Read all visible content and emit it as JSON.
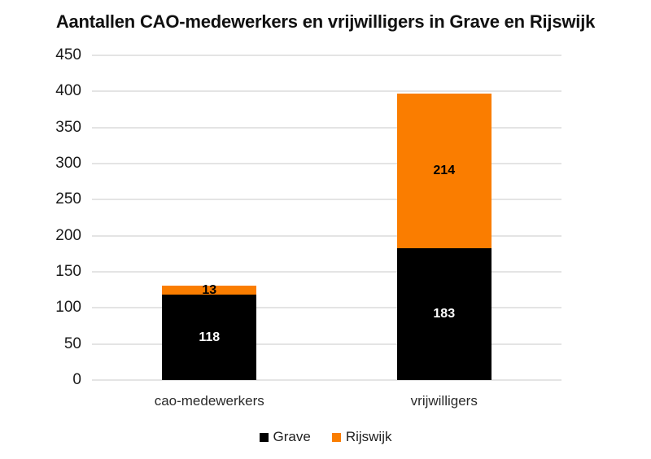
{
  "chart_data": {
    "type": "bar",
    "stacked": true,
    "title": "Aantallen CAO-medewerkers en vrijwilligers in Grave en Rijswijk",
    "categories": [
      "cao-medewerkers",
      "vrijwilligers"
    ],
    "series": [
      {
        "name": "Grave",
        "color": "#000000",
        "label_color": "#ffffff",
        "values": [
          118,
          183
        ]
      },
      {
        "name": "Rijswijk",
        "color": "#fa7d00",
        "label_color": "#000000",
        "values": [
          13,
          214
        ]
      }
    ],
    "ylim": [
      0,
      450
    ],
    "ytick_step": 50,
    "grid": true,
    "legend_position": "bottom",
    "gridline_color": "#e4e4e4",
    "tick_label_color": "#1a1a1a",
    "axis_label_color": "#2b2b2b",
    "background_color": "#ffffff"
  }
}
